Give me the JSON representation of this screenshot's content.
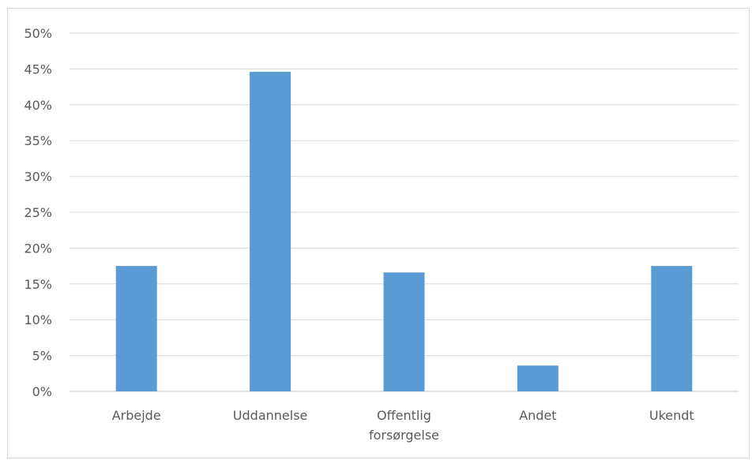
{
  "chart_data": {
    "type": "bar",
    "categories": [
      "Arbejde",
      "Uddannelse",
      "Offentlig forsørgelse",
      "Andet",
      "Ukendt"
    ],
    "category_label_lines": [
      [
        "Arbejde"
      ],
      [
        "Uddannelse"
      ],
      [
        "Offentlig",
        "forsørgelse"
      ],
      [
        "Andet"
      ],
      [
        "Ukendt"
      ]
    ],
    "values": [
      17.5,
      44.6,
      16.6,
      3.6,
      17.5
    ],
    "ylim": [
      0,
      50
    ],
    "yticks": [
      0,
      5,
      10,
      15,
      20,
      25,
      30,
      35,
      40,
      45,
      50
    ],
    "ytick_format": "percent",
    "title": "",
    "xlabel": "",
    "ylabel": "",
    "grid": true,
    "legend": "none",
    "bar_color": "#5b9bd5",
    "grid_color": "#d9d9d9",
    "text_color": "#595959"
  }
}
